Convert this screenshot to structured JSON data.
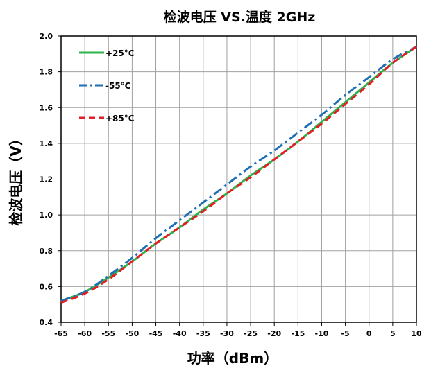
{
  "chart_data": {
    "type": "line",
    "title": "检波电压 VS.温度 2GHz",
    "xlabel": "功率（dBm）",
    "ylabel": "检波电压（V）",
    "xlim": [
      -65,
      10
    ],
    "ylim": [
      0.4,
      2.0
    ],
    "xticks": [
      -65,
      -60,
      -55,
      -50,
      -45,
      -40,
      -35,
      -30,
      -25,
      -20,
      -15,
      -10,
      -5,
      0,
      5,
      10
    ],
    "yticks": [
      "0.4",
      "0.6",
      "0.8",
      "1.0",
      "1.2",
      "1.4",
      "1.6",
      "1.8",
      "2.0"
    ],
    "grid": true,
    "legend_position": "top-left",
    "series": [
      {
        "name": "+25°C",
        "color": "#2db34a",
        "dash": "solid",
        "x": [
          -65,
          -60,
          -55,
          -50,
          -45,
          -40,
          -35,
          -30,
          -25,
          -20,
          -15,
          -10,
          -5,
          0,
          5,
          10
        ],
        "y": [
          0.52,
          0.57,
          0.65,
          0.74,
          0.84,
          0.93,
          1.03,
          1.12,
          1.22,
          1.31,
          1.41,
          1.52,
          1.63,
          1.74,
          1.85,
          1.94
        ]
      },
      {
        "name": "-55°C",
        "color": "#1f6fb5",
        "dash": "dashdot",
        "x": [
          -65,
          -60,
          -55,
          -50,
          -45,
          -40,
          -35,
          -30,
          -25,
          -20,
          -15,
          -10,
          -5,
          0,
          5,
          10
        ],
        "y": [
          0.52,
          0.57,
          0.66,
          0.76,
          0.87,
          0.97,
          1.07,
          1.17,
          1.27,
          1.36,
          1.46,
          1.56,
          1.67,
          1.77,
          1.87,
          1.94
        ]
      },
      {
        "name": "+85°C",
        "color": "#e31e24",
        "dash": "dash",
        "x": [
          -65,
          -60,
          -55,
          -50,
          -45,
          -40,
          -35,
          -30,
          -25,
          -20,
          -15,
          -10,
          -5,
          0,
          5,
          10
        ],
        "y": [
          0.51,
          0.56,
          0.64,
          0.74,
          0.84,
          0.93,
          1.02,
          1.12,
          1.21,
          1.31,
          1.41,
          1.51,
          1.62,
          1.73,
          1.85,
          1.94
        ]
      }
    ]
  }
}
